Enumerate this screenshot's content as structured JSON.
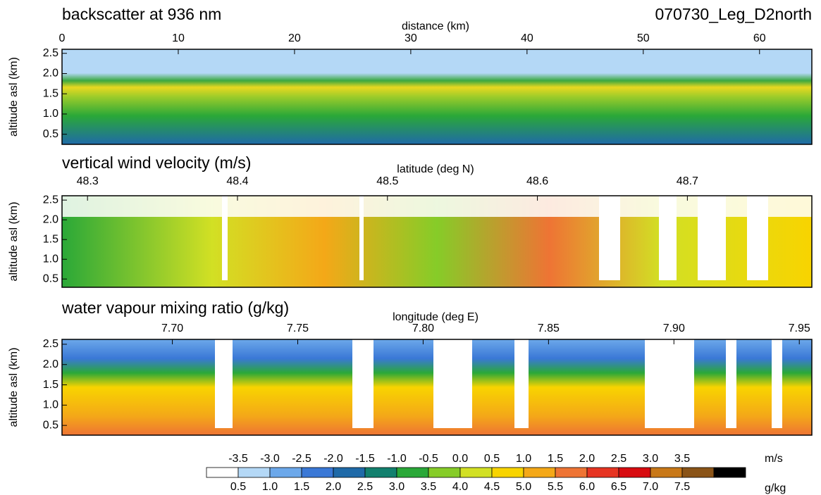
{
  "chart_data": [
    {
      "type": "heatmap",
      "title": "backscatter at 936 nm",
      "xlabel": "distance (km)",
      "ylabel": "altitude asl (km)",
      "xlim": [
        0,
        64.5
      ],
      "xticks": [
        0,
        10,
        20,
        30,
        40,
        50,
        60
      ],
      "ylim": [
        0.25,
        2.6
      ],
      "yticks": [
        0.5,
        {
          "value": 1.0,
          "label": "1.0"
        },
        1.5,
        {
          "value": 2.0,
          "label": "2.0"
        },
        2.5
      ]
    },
    {
      "type": "heatmap",
      "title": "vertical wind velocity (m/s)",
      "xlabel": "latitude (deg N)",
      "ylabel": "altitude asl (km)",
      "xlim": [
        48.283,
        48.783
      ],
      "xticks": [
        48.3,
        48.4,
        48.5,
        48.6,
        48.7
      ],
      "ylim": [
        0.29,
        2.61
      ],
      "yticks": [
        0.5,
        {
          "value": 1.0,
          "label": "1.0"
        },
        1.5,
        {
          "value": 2.0,
          "label": "2.0"
        },
        2.5
      ]
    },
    {
      "type": "heatmap",
      "title": "water vapour mixing ratio (g/kg)",
      "xlabel": "longitude (deg E)",
      "ylabel": "altitude asl (km)",
      "xlim": [
        7.656,
        7.955
      ],
      "xticks": [
        {
          "value": 7.7,
          "label": "7.70"
        },
        7.75,
        {
          "value": 7.8,
          "label": "7.80"
        },
        7.85,
        {
          "value": 7.9,
          "label": "7.90"
        },
        7.95
      ],
      "ylim": [
        0.26,
        2.62
      ],
      "yticks": [
        0.5,
        {
          "value": 1.0,
          "label": "1.0"
        },
        1.5,
        {
          "value": 2.0,
          "label": "2.0"
        },
        2.5
      ]
    }
  ],
  "run_label": "070730_Leg_D2north",
  "colorbar": {
    "colors": [
      "#ffffff",
      "#b4d8f6",
      "#6ca8ea",
      "#3a78d6",
      "#1f6aa8",
      "#12806e",
      "#2aa838",
      "#86cc28",
      "#d2e024",
      "#f8d400",
      "#f4a818",
      "#ee7434",
      "#e63422",
      "#d80c10",
      "#c87818",
      "#8a5418",
      "#000000"
    ],
    "top_unit": "m/s",
    "top_labels": [
      -3.5,
      -3.0,
      -2.5,
      -2.0,
      -1.5,
      -1.0,
      -0.5,
      0.0,
      0.5,
      1.0,
      1.5,
      2.0,
      2.5,
      3.0,
      3.5
    ],
    "top_value_labels": [
      "-3.5",
      "-3.0",
      "-2.5",
      "-2.0",
      "-1.5",
      "-1.0",
      "-0.5",
      "0.0",
      "0.5",
      "1.0",
      "1.5",
      "2.0",
      "2.5",
      "3.0",
      "3.5"
    ],
    "bottom_unit": "g/kg",
    "bottom_labels": [
      0.5,
      1.0,
      1.5,
      2.0,
      2.5,
      3.0,
      3.5,
      4.0,
      4.5,
      5.0,
      5.5,
      6.0,
      6.5,
      7.0,
      7.5
    ],
    "bottom_value_labels": [
      "0.5",
      "1.0",
      "1.5",
      "2.0",
      "2.5",
      "3.0",
      "3.5",
      "4.0",
      "4.5",
      "5.0",
      "5.5",
      "6.0",
      "6.5",
      "7.0",
      "7.5"
    ]
  }
}
